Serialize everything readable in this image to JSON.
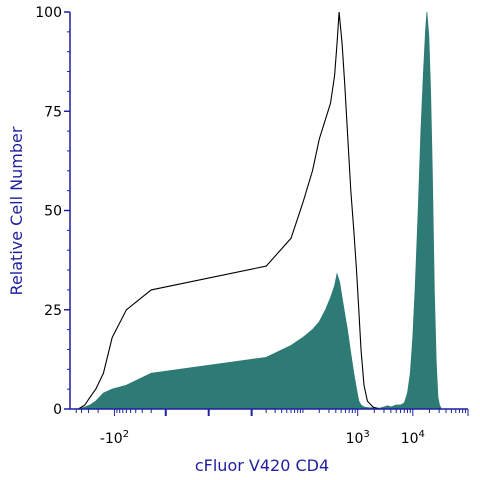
{
  "chart_data": {
    "type": "area",
    "xlabel": "cFluor V420 CD4",
    "ylabel": "Relative Cell Number",
    "x_scale": "biexponential (logicle)",
    "ylim": [
      0,
      100
    ],
    "y_ticks": [
      {
        "value": 0,
        "label": "0"
      },
      {
        "value": 25,
        "label": "25"
      },
      {
        "value": 50,
        "label": "50"
      },
      {
        "value": 75,
        "label": "75"
      },
      {
        "value": 100,
        "label": "100"
      }
    ],
    "x_ticks": [
      {
        "value": -100,
        "label": "-10"
      },
      {
        "value": 1000,
        "label": "10"
      },
      {
        "value": 10000,
        "label": "10"
      }
    ],
    "x_tick_exponents": [
      "2",
      "3",
      "4"
    ],
    "colors": {
      "filled_histogram": "#2e7b76",
      "open_histogram": "#000000",
      "axis_labels": "#1f1fa0",
      "axes": "#1f1fa0"
    },
    "series": [
      {
        "style": "outline",
        "points": [
          [
            -460,
            0
          ],
          [
            -350,
            1
          ],
          [
            -280,
            3
          ],
          [
            -220,
            5
          ],
          [
            -160,
            9
          ],
          [
            -110,
            18
          ],
          [
            -60,
            25
          ],
          [
            -20,
            30
          ],
          [
            20,
            36
          ],
          [
            60,
            43
          ],
          [
            100,
            52
          ],
          [
            150,
            60
          ],
          [
            200,
            68
          ],
          [
            260,
            73
          ],
          [
            320,
            77
          ],
          [
            380,
            84
          ],
          [
            420,
            92
          ],
          [
            460,
            100
          ],
          [
            520,
            92
          ],
          [
            580,
            82
          ],
          [
            650,
            70
          ],
          [
            750,
            55
          ],
          [
            850,
            45
          ],
          [
            950,
            35
          ],
          [
            1050,
            25
          ],
          [
            1150,
            15
          ],
          [
            1300,
            6
          ],
          [
            1500,
            2
          ],
          [
            1900,
            0.5
          ],
          [
            2500,
            0
          ]
        ]
      },
      {
        "style": "filled",
        "points": [
          [
            -460,
            0
          ],
          [
            -350,
            0.5
          ],
          [
            -280,
            1
          ],
          [
            -220,
            2
          ],
          [
            -160,
            4
          ],
          [
            -110,
            5
          ],
          [
            -60,
            6
          ],
          [
            -20,
            9
          ],
          [
            20,
            13
          ],
          [
            60,
            16
          ],
          [
            100,
            18
          ],
          [
            150,
            20
          ],
          [
            200,
            22
          ],
          [
            260,
            25
          ],
          [
            320,
            28
          ],
          [
            380,
            31
          ],
          [
            420,
            34
          ],
          [
            470,
            32
          ],
          [
            520,
            28
          ],
          [
            580,
            24
          ],
          [
            650,
            20
          ],
          [
            750,
            14
          ],
          [
            850,
            9
          ],
          [
            950,
            5
          ],
          [
            1050,
            2
          ],
          [
            1150,
            1
          ],
          [
            1300,
            0.5
          ],
          [
            1600,
            0.3
          ],
          [
            2000,
            0.3
          ],
          [
            2500,
            0.2
          ],
          [
            3000,
            0.5
          ],
          [
            3500,
            0.8
          ],
          [
            4000,
            0.5
          ],
          [
            5000,
            1
          ],
          [
            6000,
            1
          ],
          [
            7000,
            1.5
          ],
          [
            8000,
            4
          ],
          [
            9000,
            9
          ],
          [
            10000,
            18
          ],
          [
            11000,
            30
          ],
          [
            12500,
            50
          ],
          [
            14000,
            70
          ],
          [
            15500,
            84
          ],
          [
            17000,
            95
          ],
          [
            18000,
            100
          ],
          [
            19500,
            94
          ],
          [
            21000,
            80
          ],
          [
            22500,
            60
          ],
          [
            24500,
            30
          ],
          [
            26500,
            12
          ],
          [
            28500,
            3
          ],
          [
            30500,
            1
          ],
          [
            33000,
            0
          ]
        ]
      }
    ]
  }
}
